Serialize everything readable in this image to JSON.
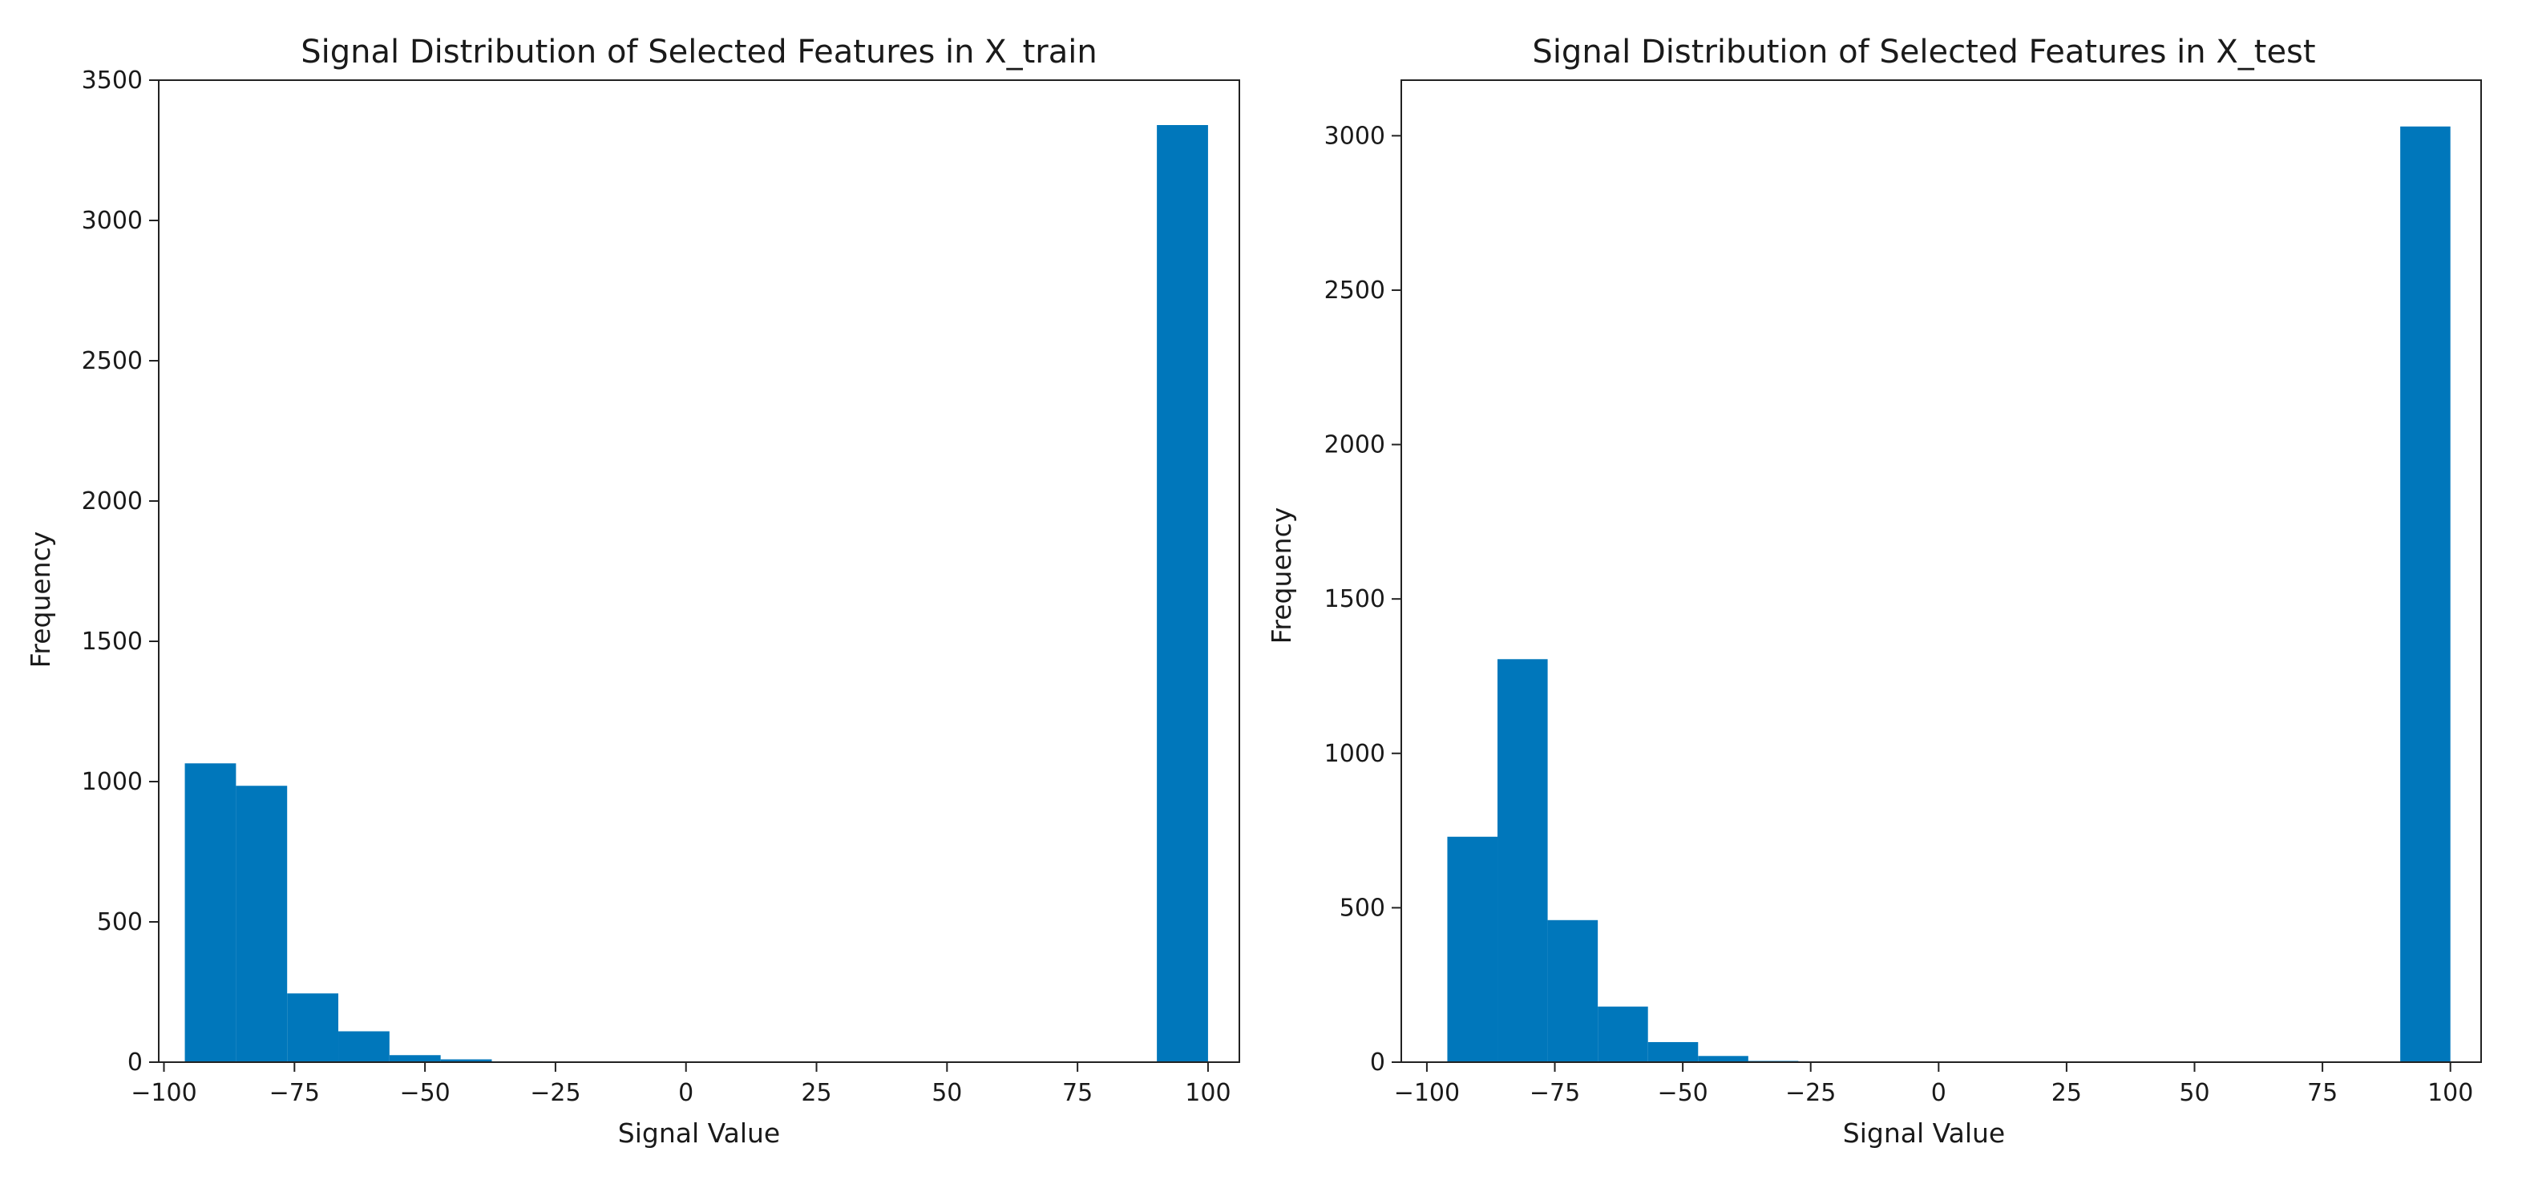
{
  "chart_data": [
    {
      "type": "bar",
      "title": "Signal Distribution of Selected Features in X_train",
      "xlabel": "Signal Value",
      "ylabel": "Frequency",
      "xlim": [
        -101,
        106
      ],
      "ylim": [
        0,
        3500
      ],
      "xticks": [
        -100,
        -75,
        -50,
        -25,
        0,
        25,
        50,
        75,
        100
      ],
      "yticks": [
        0,
        500,
        1000,
        1500,
        2000,
        2500,
        3000,
        3500
      ],
      "xtick_labels": [
        "−100",
        "−75",
        "−50",
        "−25",
        "0",
        "25",
        "50",
        "75",
        "100"
      ],
      "ytick_labels": [
        "0",
        "500",
        "1000",
        "1500",
        "2000",
        "2500",
        "3000",
        "3500"
      ],
      "grid": false,
      "bar_color": "#0077bb",
      "bins": [
        {
          "x0": -96,
          "x1": -86.2,
          "value": 1065
        },
        {
          "x0": -86.2,
          "x1": -76.4,
          "value": 985
        },
        {
          "x0": -76.4,
          "x1": -66.6,
          "value": 245
        },
        {
          "x0": -66.6,
          "x1": -56.8,
          "value": 110
        },
        {
          "x0": -56.8,
          "x1": -47.0,
          "value": 25
        },
        {
          "x0": -47.0,
          "x1": -37.2,
          "value": 10
        },
        {
          "x0": -37.2,
          "x1": -27.4,
          "value": 3
        },
        {
          "x0": -27.4,
          "x1": -17.6,
          "value": 2
        },
        {
          "x0": -17.6,
          "x1": -7.8,
          "value": 1
        },
        {
          "x0": -7.8,
          "x1": 2.0,
          "value": 1
        },
        {
          "x0": 2.0,
          "x1": 11.8,
          "value": 0
        },
        {
          "x0": 11.8,
          "x1": 21.6,
          "value": 0
        },
        {
          "x0": 21.6,
          "x1": 31.4,
          "value": 0
        },
        {
          "x0": 31.4,
          "x1": 41.2,
          "value": 0
        },
        {
          "x0": 41.2,
          "x1": 51.0,
          "value": 0
        },
        {
          "x0": 51.0,
          "x1": 60.8,
          "value": 0
        },
        {
          "x0": 60.8,
          "x1": 70.6,
          "value": 0
        },
        {
          "x0": 70.6,
          "x1": 80.4,
          "value": 0
        },
        {
          "x0": 80.4,
          "x1": 90.2,
          "value": 0
        },
        {
          "x0": 90.2,
          "x1": 100.0,
          "value": 3340
        }
      ]
    },
    {
      "type": "bar",
      "title": "Signal Distribution of Selected Features in X_test",
      "xlabel": "Signal Value",
      "ylabel": "Frequency",
      "xlim": [
        -105,
        106
      ],
      "ylim": [
        0,
        3180
      ],
      "xticks": [
        -100,
        -75,
        -50,
        -25,
        0,
        25,
        50,
        75,
        100
      ],
      "yticks": [
        0,
        500,
        1000,
        1500,
        2000,
        2500,
        3000
      ],
      "xtick_labels": [
        "−100",
        "−75",
        "−50",
        "−25",
        "0",
        "25",
        "50",
        "75",
        "100"
      ],
      "ytick_labels": [
        "0",
        "500",
        "1000",
        "1500",
        "2000",
        "2500",
        "3000"
      ],
      "grid": false,
      "bar_color": "#0077bb",
      "bins": [
        {
          "x0": -96,
          "x1": -86.2,
          "value": 730
        },
        {
          "x0": -86.2,
          "x1": -76.4,
          "value": 1305
        },
        {
          "x0": -76.4,
          "x1": -66.6,
          "value": 460
        },
        {
          "x0": -66.6,
          "x1": -56.8,
          "value": 180
        },
        {
          "x0": -56.8,
          "x1": -47.0,
          "value": 65
        },
        {
          "x0": -47.0,
          "x1": -37.2,
          "value": 20
        },
        {
          "x0": -37.2,
          "x1": -27.4,
          "value": 4
        },
        {
          "x0": -27.4,
          "x1": -17.6,
          "value": 2
        },
        {
          "x0": -17.6,
          "x1": -7.8,
          "value": 1
        },
        {
          "x0": -7.8,
          "x1": 2.0,
          "value": 1
        },
        {
          "x0": 2.0,
          "x1": 11.8,
          "value": 0
        },
        {
          "x0": 11.8,
          "x1": 21.6,
          "value": 0
        },
        {
          "x0": 21.6,
          "x1": 31.4,
          "value": 0
        },
        {
          "x0": 31.4,
          "x1": 41.2,
          "value": 0
        },
        {
          "x0": 41.2,
          "x1": 51.0,
          "value": 0
        },
        {
          "x0": 51.0,
          "x1": 60.8,
          "value": 0
        },
        {
          "x0": 60.8,
          "x1": 70.6,
          "value": 0
        },
        {
          "x0": 70.6,
          "x1": 80.4,
          "value": 0
        },
        {
          "x0": 80.4,
          "x1": 90.2,
          "value": 0
        },
        {
          "x0": 90.2,
          "x1": 100.0,
          "value": 3030
        }
      ]
    }
  ]
}
